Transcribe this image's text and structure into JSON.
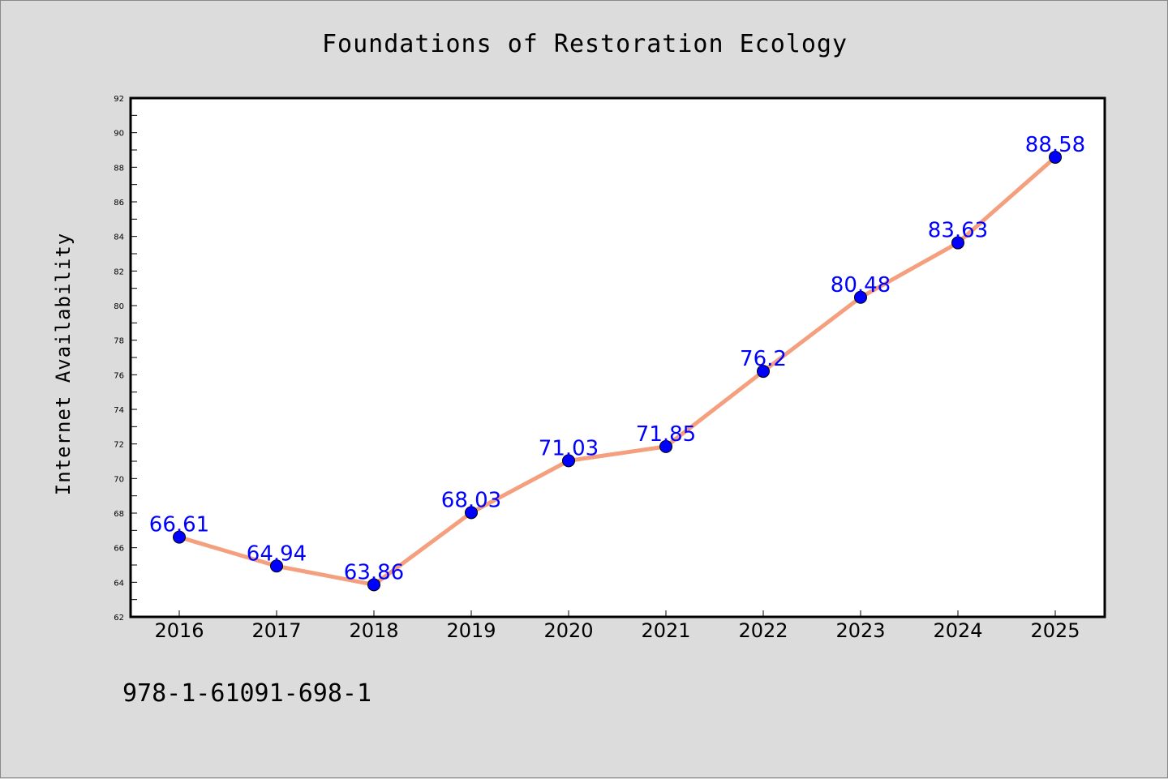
{
  "chart_data": {
    "type": "line",
    "title": "Foundations of Restoration Ecology",
    "xlabel": "",
    "ylabel": "Internet Availability",
    "categories": [
      "2016",
      "2017",
      "2018",
      "2019",
      "2020",
      "2021",
      "2022",
      "2023",
      "2024",
      "2025"
    ],
    "series": [
      {
        "values": [
          66.61,
          64.94,
          63.86,
          68.03,
          71.03,
          71.85,
          76.2,
          80.48,
          83.63,
          88.58
        ],
        "data_labels": [
          "66.61",
          "64.94",
          "63.86",
          "68.03",
          "71.03",
          "71.85",
          "76.2",
          "80.48",
          "83.63",
          "88.58"
        ],
        "line_color": "#f4a07e",
        "marker_color": "#0000ff"
      }
    ],
    "ylim": [
      62,
      92
    ],
    "yticks": [
      "62",
      "64",
      "66",
      "68",
      "70",
      "72",
      "74",
      "76",
      "78",
      "80",
      "82",
      "84",
      "86",
      "88",
      "90",
      "92"
    ],
    "grid": false,
    "legend": "none",
    "footer": "978-1-61091-698-1",
    "colors": {
      "background": "#dcdcdc",
      "plot_area": "#ffffff",
      "label_color": "#0000ff"
    }
  }
}
